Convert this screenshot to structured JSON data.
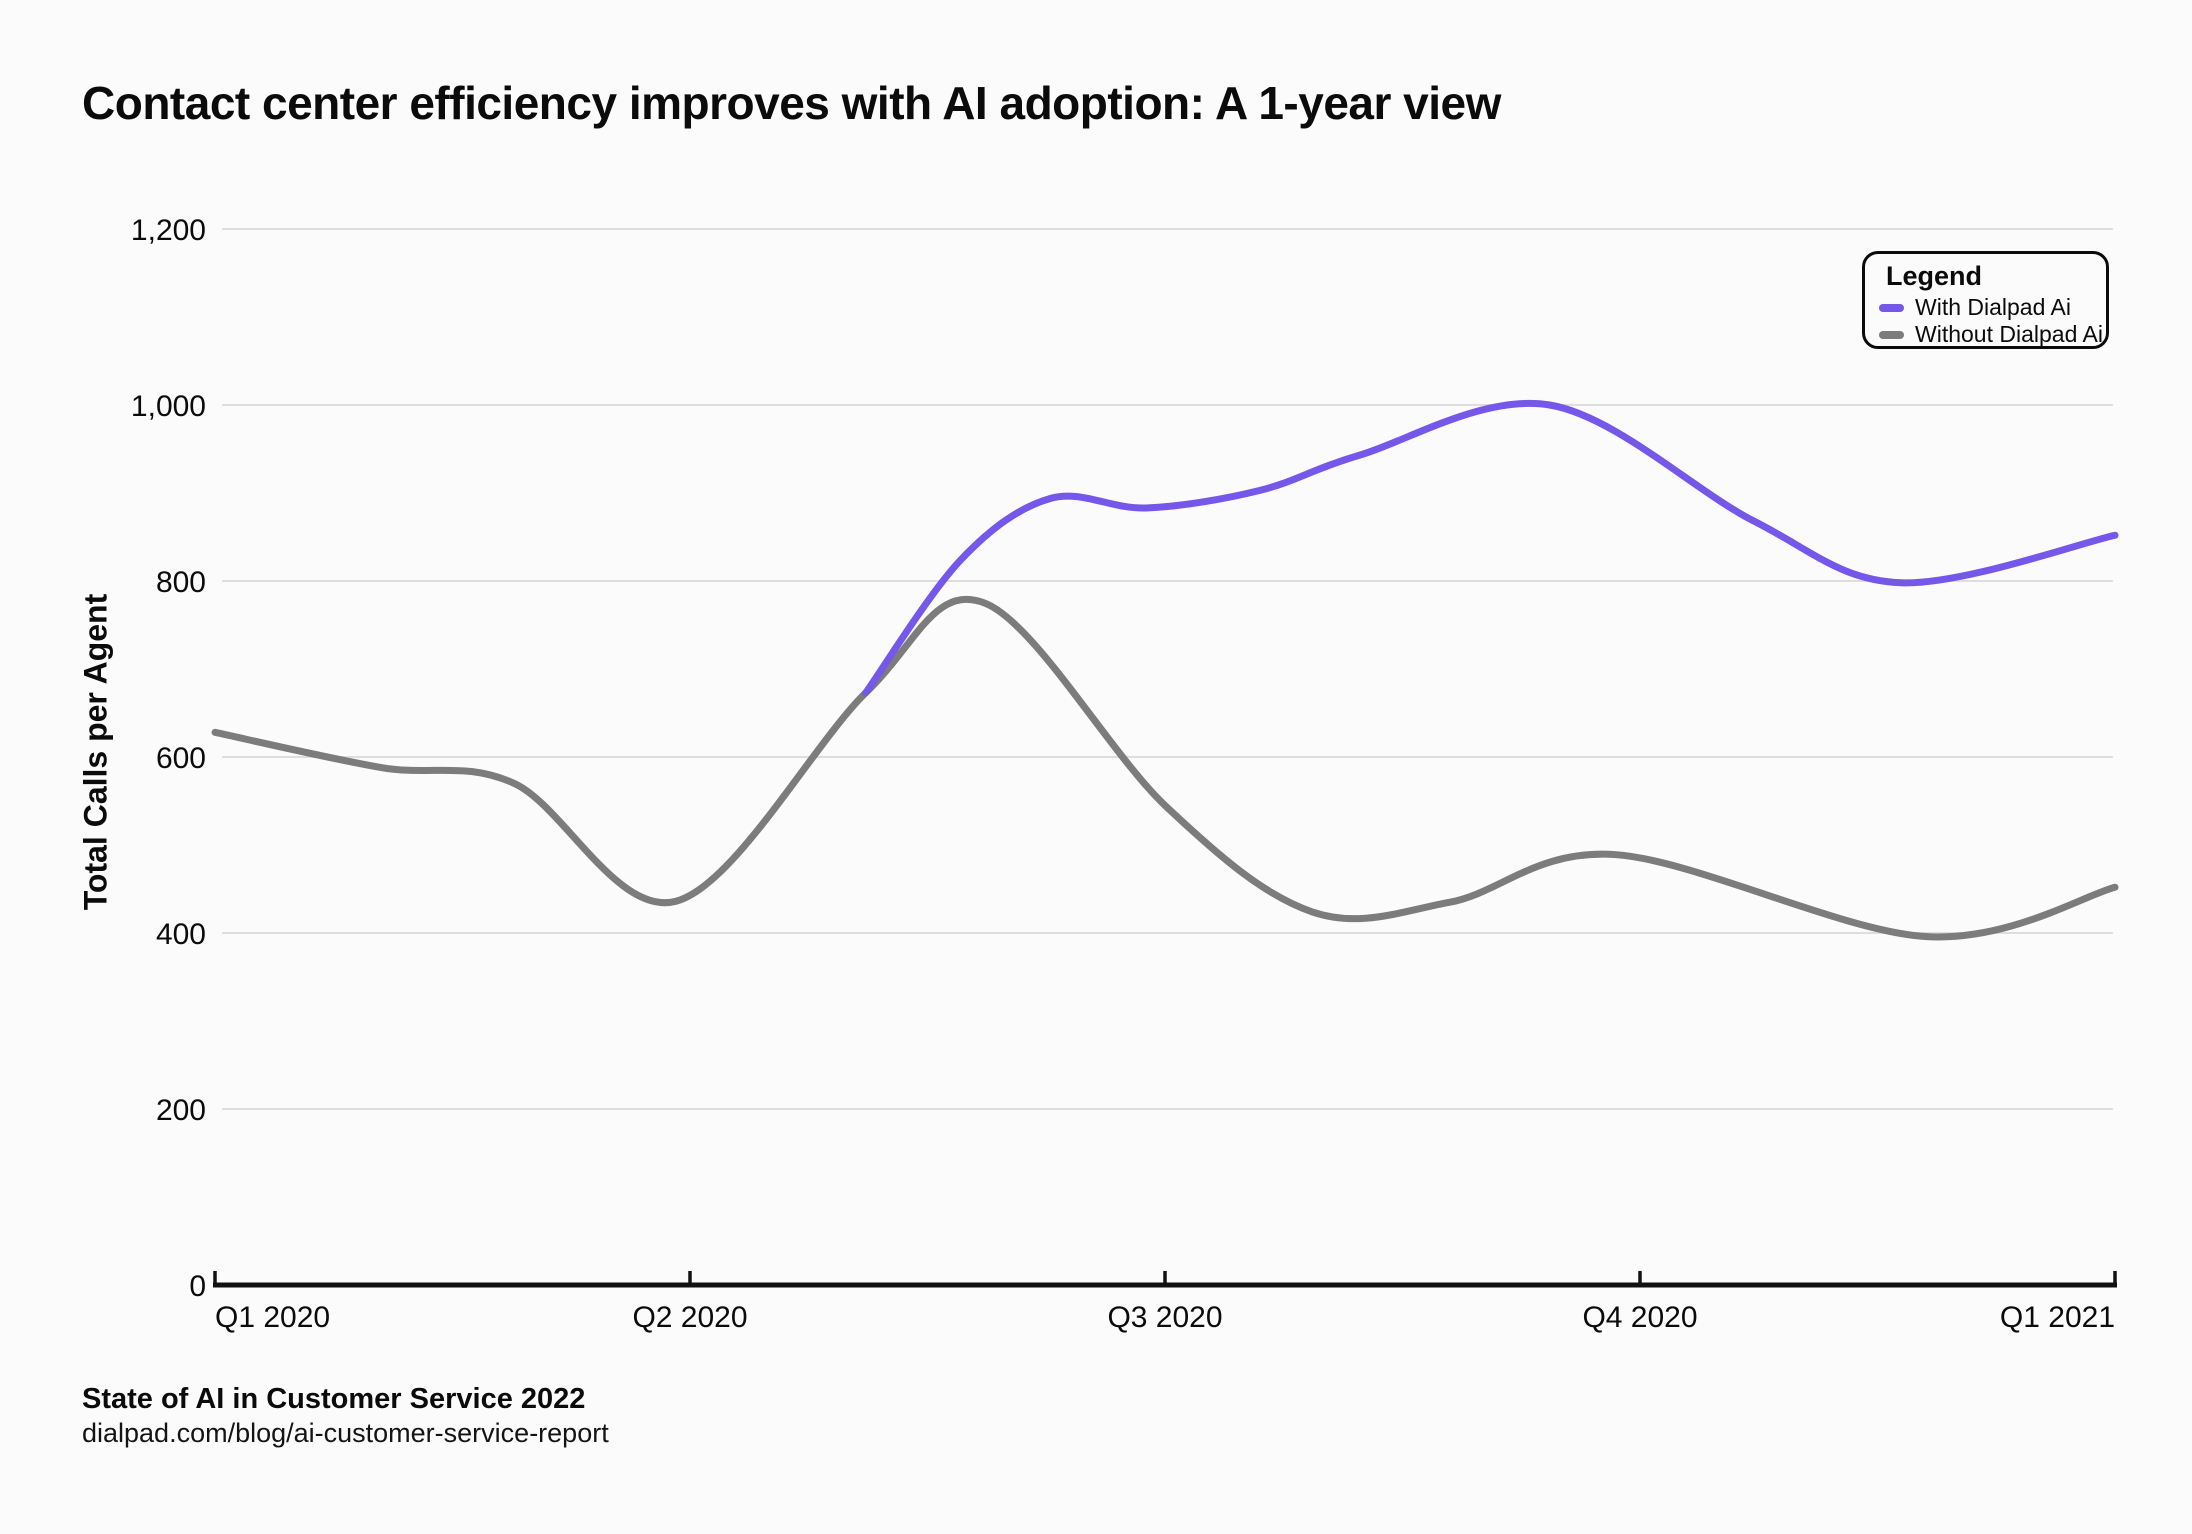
{
  "page": {
    "title": "Contact center efficiency improves with AI adoption: A 1-year view",
    "source_title": "State of AI in Customer Service 2022",
    "source_url": "dialpad.com/blog/ai-customer-service-report"
  },
  "chart_data": {
    "type": "line",
    "title": "Contact center efficiency improves with AI adoption: A 1-year view",
    "xlabel": "",
    "ylabel": "Total Calls per Agent",
    "x_ticks": [
      "Q1 2020",
      "Q2 2020",
      "Q3 2020",
      "Q4 2020",
      "Q1 2021"
    ],
    "y_ticks": [
      {
        "value": 0,
        "label": "0"
      },
      {
        "value": 200,
        "label": "200"
      },
      {
        "value": 400,
        "label": "400"
      },
      {
        "value": 600,
        "label": "600"
      },
      {
        "value": 800,
        "label": "800"
      },
      {
        "value": 1000,
        "label": "1,000"
      },
      {
        "value": 1200,
        "label": "1,200"
      }
    ],
    "ylim": [
      0,
      1200
    ],
    "xlim": [
      0,
      4
    ],
    "grid": "horizontal",
    "legend": {
      "title": "Legend",
      "position": "top-right",
      "items": [
        {
          "label": "With Dialpad Ai",
          "color": "#7557EA"
        },
        {
          "label": "Without Dialpad Ai",
          "color": "#7C7C7C"
        }
      ]
    },
    "series": [
      {
        "name": "Without Dialpad Ai",
        "color": "#7C7C7C",
        "points": [
          [
            0,
            628
          ],
          [
            0.35,
            588
          ],
          [
            0.63,
            570
          ],
          [
            0.97,
            436
          ],
          [
            1.37,
            673
          ],
          [
            1.62,
            775
          ],
          [
            2.0,
            545
          ],
          [
            2.31,
            424
          ],
          [
            2.6,
            435
          ],
          [
            2.95,
            489
          ],
          [
            3.6,
            396
          ],
          [
            4.0,
            452
          ]
        ]
      },
      {
        "name": "With Dialpad Ai",
        "color": "#7557EA",
        "points": [
          [
            1.37,
            673
          ],
          [
            1.57,
            824
          ],
          [
            1.76,
            894
          ],
          [
            1.96,
            883
          ],
          [
            2.2,
            903
          ],
          [
            2.41,
            943
          ],
          [
            2.81,
            1000
          ],
          [
            3.24,
            868
          ],
          [
            3.55,
            798
          ],
          [
            4.0,
            852
          ]
        ]
      }
    ],
    "style": {
      "background": "#FCFBFB",
      "gridline_color": "#DEDEDE",
      "axis_color": "#111111",
      "line_width": 7
    }
  }
}
